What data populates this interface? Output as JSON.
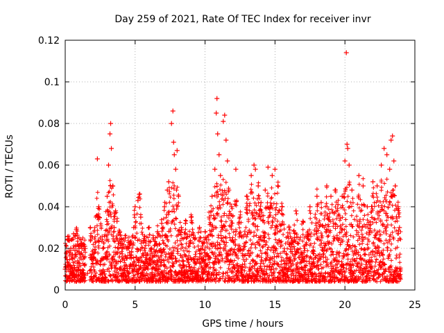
{
  "chart_data": {
    "type": "scatter",
    "title": "Day 259 of 2021, Rate Of TEC Index for receiver invr",
    "xlabel": "GPS time / hours",
    "ylabel": "ROTI / TECUs",
    "xlim": [
      0,
      25
    ],
    "ylim": [
      0,
      0.12
    ],
    "xticks": [
      0,
      5,
      10,
      15,
      20,
      25
    ],
    "xtick_labels": [
      "0",
      "5",
      "10",
      "15",
      "20",
      "25"
    ],
    "yticks": [
      0,
      0.02,
      0.04,
      0.06,
      0.08,
      0.1,
      0.12
    ],
    "ytick_labels": [
      "0",
      "0.02",
      "0.04",
      "0.06",
      "0.08",
      "0.1",
      "0.12"
    ],
    "grid": true,
    "marker": "plus",
    "series": [
      {
        "name": "ROTI",
        "color": "#ff0000",
        "points": [
          [
            0.0,
            0.01
          ],
          [
            0.1,
            0.018
          ],
          [
            0.2,
            0.024
          ],
          [
            0.3,
            0.012
          ],
          [
            0.4,
            0.02
          ],
          [
            0.5,
            0.015
          ],
          [
            0.6,
            0.027
          ],
          [
            0.7,
            0.019
          ],
          [
            0.8,
            0.029
          ],
          [
            0.9,
            0.022
          ],
          [
            1.0,
            0.021
          ],
          [
            1.1,
            0.017
          ],
          [
            1.2,
            0.02
          ],
          [
            1.3,
            0.016
          ],
          [
            1.4,
            0.021
          ],
          [
            1.6,
            0.008
          ],
          [
            1.8,
            0.03
          ],
          [
            2.0,
            0.015
          ],
          [
            2.3,
            0.063
          ],
          [
            2.4,
            0.04
          ],
          [
            2.5,
            0.025
          ],
          [
            2.7,
            0.02
          ],
          [
            3.0,
            0.045
          ],
          [
            3.1,
            0.06
          ],
          [
            3.2,
            0.075
          ],
          [
            3.25,
            0.08
          ],
          [
            3.3,
            0.068
          ],
          [
            3.4,
            0.05
          ],
          [
            3.5,
            0.03
          ],
          [
            3.6,
            0.038
          ],
          [
            3.7,
            0.033
          ],
          [
            3.9,
            0.028
          ],
          [
            4.1,
            0.02
          ],
          [
            4.3,
            0.025
          ],
          [
            4.6,
            0.018
          ],
          [
            4.9,
            0.03
          ],
          [
            5.0,
            0.04
          ],
          [
            5.2,
            0.043
          ],
          [
            5.3,
            0.046
          ],
          [
            5.4,
            0.035
          ],
          [
            5.7,
            0.02
          ],
          [
            6.0,
            0.03
          ],
          [
            6.3,
            0.025
          ],
          [
            6.6,
            0.028
          ],
          [
            6.9,
            0.032
          ],
          [
            7.1,
            0.04
          ],
          [
            7.3,
            0.048
          ],
          [
            7.4,
            0.052
          ],
          [
            7.6,
            0.08
          ],
          [
            7.7,
            0.086
          ],
          [
            7.75,
            0.071
          ],
          [
            7.8,
            0.065
          ],
          [
            7.9,
            0.058
          ],
          [
            8.0,
            0.067
          ],
          [
            8.1,
            0.045
          ],
          [
            8.3,
            0.03
          ],
          [
            8.6,
            0.032
          ],
          [
            9.0,
            0.035
          ],
          [
            9.3,
            0.025
          ],
          [
            9.6,
            0.03
          ],
          [
            10.0,
            0.028
          ],
          [
            10.3,
            0.035
          ],
          [
            10.5,
            0.045
          ],
          [
            10.7,
            0.058
          ],
          [
            10.8,
            0.085
          ],
          [
            10.85,
            0.092
          ],
          [
            10.9,
            0.075
          ],
          [
            11.0,
            0.065
          ],
          [
            11.1,
            0.055
          ],
          [
            11.3,
            0.081
          ],
          [
            11.4,
            0.084
          ],
          [
            11.5,
            0.072
          ],
          [
            11.6,
            0.062
          ],
          [
            11.7,
            0.048
          ],
          [
            11.9,
            0.04
          ],
          [
            12.2,
            0.058
          ],
          [
            12.5,
            0.035
          ],
          [
            13.0,
            0.045
          ],
          [
            13.3,
            0.055
          ],
          [
            13.5,
            0.06
          ],
          [
            13.6,
            0.058
          ],
          [
            13.8,
            0.05
          ],
          [
            14.0,
            0.042
          ],
          [
            14.3,
            0.048
          ],
          [
            14.5,
            0.059
          ],
          [
            14.8,
            0.055
          ],
          [
            15.0,
            0.058
          ],
          [
            15.2,
            0.05
          ],
          [
            15.5,
            0.04
          ],
          [
            16.0,
            0.03
          ],
          [
            16.5,
            0.038
          ],
          [
            17.0,
            0.033
          ],
          [
            17.5,
            0.04
          ],
          [
            18.0,
            0.045
          ],
          [
            18.3,
            0.042
          ],
          [
            18.7,
            0.05
          ],
          [
            19.0,
            0.045
          ],
          [
            19.3,
            0.048
          ],
          [
            19.5,
            0.041
          ],
          [
            19.8,
            0.045
          ],
          [
            20.0,
            0.062
          ],
          [
            20.1,
            0.114
          ],
          [
            20.15,
            0.07
          ],
          [
            20.2,
            0.068
          ],
          [
            20.3,
            0.06
          ],
          [
            20.5,
            0.048
          ],
          [
            21.0,
            0.055
          ],
          [
            21.3,
            0.05
          ],
          [
            21.6,
            0.04
          ],
          [
            22.0,
            0.052
          ],
          [
            22.3,
            0.05
          ],
          [
            22.6,
            0.06
          ],
          [
            22.8,
            0.068
          ],
          [
            23.0,
            0.065
          ],
          [
            23.2,
            0.058
          ],
          [
            23.3,
            0.072
          ],
          [
            23.4,
            0.074
          ],
          [
            23.5,
            0.062
          ],
          [
            23.6,
            0.05
          ],
          [
            23.8,
            0.04
          ],
          [
            23.9,
            0.03
          ]
        ]
      }
    ]
  }
}
